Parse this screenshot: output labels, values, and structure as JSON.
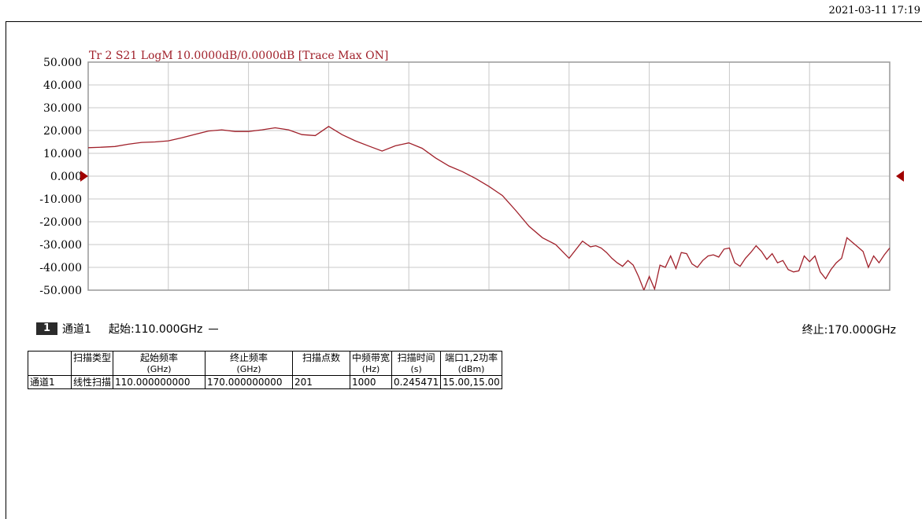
{
  "timestamp": "2021-03-11 17:19",
  "colors": {
    "trace": "#a0202a",
    "grid": "#c8c8c8",
    "frame": "#999999",
    "marker": "#a00000"
  },
  "status_bar": {
    "channel_number": "1",
    "channel_label": "通道1",
    "start_label": "起始:110.000GHz",
    "stop_label": "终止:170.000GHz"
  },
  "chart_data": {
    "type": "line",
    "title": "Tr 2  S21 LogM 10.0000dB/0.0000dB  [Trace Max ON]",
    "xlabel": "",
    "ylabel": "",
    "xlim": [
      110,
      170
    ],
    "ylim": [
      -50,
      50
    ],
    "x_divisions": 10,
    "grid": true,
    "y_ticks": [
      "50.000",
      "40.000",
      "30.000",
      "20.000",
      "10.000",
      "0.000",
      "-10.000",
      "-20.000",
      "-30.000",
      "-40.000",
      "-50.000"
    ],
    "reference_level": 0,
    "series": [
      {
        "x": [
          110.0,
          111.0,
          112.0,
          113.0,
          114.0,
          115.0,
          116.0,
          117.0,
          118.0,
          119.0,
          120.0,
          121.0,
          122.0,
          123.0,
          124.0,
          125.0,
          126.0,
          127.0,
          128.0,
          129.0,
          130.0,
          131.0,
          132.0,
          133.0,
          134.0,
          135.0,
          136.0,
          137.0,
          138.0,
          139.0,
          140.0,
          141.0,
          142.0,
          143.0,
          144.0,
          145.0,
          146.0,
          147.0,
          147.6,
          148.0,
          148.4,
          148.8,
          149.2,
          149.6,
          150.0,
          150.4,
          150.8,
          151.2,
          151.6,
          152.0,
          152.4,
          152.8,
          153.2,
          153.6,
          154.0,
          154.4,
          154.8,
          155.2,
          155.6,
          156.0,
          156.4,
          156.8,
          157.2,
          157.6,
          158.0,
          158.4,
          158.8,
          159.2,
          159.6,
          160.0,
          160.4,
          160.8,
          161.2,
          161.6,
          162.0,
          162.4,
          162.8,
          163.2,
          163.6,
          164.0,
          164.4,
          164.8,
          165.2,
          165.6,
          166.0,
          166.4,
          166.8,
          167.2,
          167.6,
          168.0,
          168.4,
          168.8,
          169.2,
          169.6,
          170.0
        ],
        "y": [
          12.5,
          12.7,
          13.0,
          14.0,
          14.8,
          15.0,
          15.5,
          16.8,
          18.3,
          19.8,
          20.3,
          19.6,
          19.6,
          20.3,
          21.2,
          20.3,
          18.2,
          17.8,
          21.8,
          18.2,
          15.5,
          13.2,
          11.0,
          13.3,
          14.6,
          12.2,
          8.0,
          4.5,
          2.0,
          -1.0,
          -4.5,
          -8.5,
          -15.0,
          -22.0,
          -27.0,
          -30.0,
          -36.0,
          -28.5,
          -31.0,
          -30.5,
          -31.5,
          -33.5,
          -36.0,
          -38.0,
          -39.5,
          -37.0,
          -39.0,
          -44.0,
          -50.0,
          -44.0,
          -49.5,
          -39.0,
          -40.0,
          -35.0,
          -40.5,
          -33.5,
          -34.0,
          -38.5,
          -40.0,
          -37.0,
          -35.0,
          -34.5,
          -35.5,
          -32.0,
          -31.5,
          -38.0,
          -39.5,
          -36.0,
          -33.5,
          -30.5,
          -33.0,
          -36.5,
          -34.0,
          -38.0,
          -37.0,
          -41.0,
          -42.0,
          -41.5,
          -35.0,
          -37.5,
          -35.0,
          -42.0,
          -45.0,
          -41.0,
          -38.0,
          -36.0,
          -27.0,
          -29.0,
          -31.0,
          -33.0,
          -40.0,
          -35.0,
          -38.0,
          -34.5,
          -31.5
        ]
      }
    ]
  },
  "params_table": {
    "headers": [
      {
        "main": "",
        "sub": ""
      },
      {
        "main": "扫描类型",
        "sub": ""
      },
      {
        "main": "起始频率",
        "sub": "(GHz)"
      },
      {
        "main": "终止频率",
        "sub": "(GHz)"
      },
      {
        "main": "扫描点数",
        "sub": ""
      },
      {
        "main": "中频带宽",
        "sub": "(Hz)"
      },
      {
        "main": "扫描时间",
        "sub": "(s)"
      },
      {
        "main": "端口1,2功率",
        "sub": "(dBm)"
      }
    ],
    "row": [
      "通道1",
      "线性扫描",
      "110.000000000",
      "170.000000000",
      "201",
      "1000",
      "0.245471",
      "15.00,15.00"
    ]
  }
}
